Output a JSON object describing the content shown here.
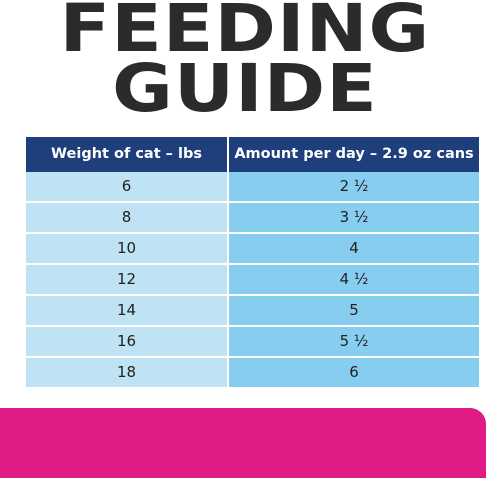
{
  "title": {
    "line1": "FEEDING",
    "line2": "GUIDE"
  },
  "table": {
    "headers": [
      "Weight of cat – lbs",
      "Amount per day – 2.9 oz cans"
    ],
    "rows": [
      [
        "6",
        "2 ½"
      ],
      [
        "8",
        "3 ½"
      ],
      [
        "10",
        "4"
      ],
      [
        "12",
        "4 ½"
      ],
      [
        "14",
        "5"
      ],
      [
        "16",
        "5 ½"
      ],
      [
        "18",
        "6"
      ]
    ]
  },
  "colors": {
    "header_bg": "#1e3f7c",
    "col1_bg": "#bfe2f4",
    "col2_bg": "#86cdef",
    "accent_bar": "#e01b86",
    "title_text": "#2b2b2b"
  }
}
